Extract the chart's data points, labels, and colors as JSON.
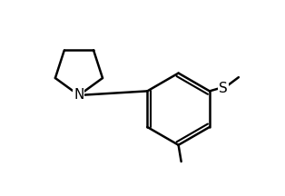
{
  "background": "#ffffff",
  "line_color": "#000000",
  "line_width": 1.8,
  "font_size": 11,
  "figsize": [
    3.14,
    2.16
  ],
  "dpi": 100
}
